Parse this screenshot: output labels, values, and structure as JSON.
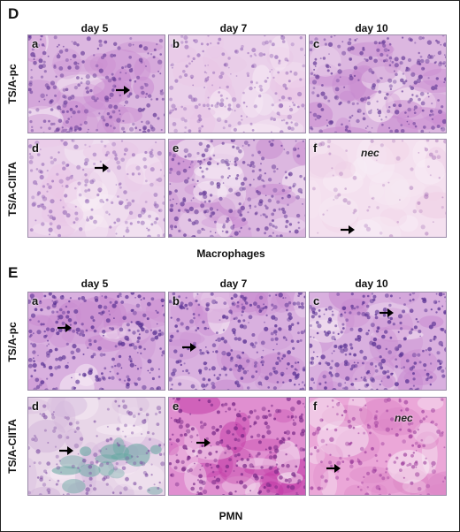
{
  "figure": {
    "panels": [
      {
        "letter": "D",
        "columns": [
          "day 5",
          "day 7",
          "day 10"
        ],
        "rows": [
          "TS/A-pc",
          "TS/A-CIITA"
        ],
        "caption": "Macrophages",
        "images": [
          {
            "letter": "a",
            "nec": ""
          },
          {
            "letter": "b",
            "nec": ""
          },
          {
            "letter": "c",
            "nec": ""
          },
          {
            "letter": "d",
            "nec": ""
          },
          {
            "letter": "e",
            "nec": ""
          },
          {
            "letter": "f",
            "nec": "nec"
          }
        ]
      },
      {
        "letter": "E",
        "columns": [
          "day 5",
          "day 7",
          "day 10"
        ],
        "rows": [
          "TS/A-pc",
          "TS/A-CIITA"
        ],
        "caption": "PMN",
        "images": [
          {
            "letter": "a",
            "nec": ""
          },
          {
            "letter": "b",
            "nec": ""
          },
          {
            "letter": "c",
            "nec": ""
          },
          {
            "letter": "d",
            "nec": ""
          },
          {
            "letter": "e",
            "nec": ""
          },
          {
            "letter": "f",
            "nec": "nec"
          }
        ]
      }
    ],
    "colors": {
      "stain_light": "#e9c6e6",
      "stain_mid": "#c98bd0",
      "stain_dark": "#8a4aa8",
      "nuclei": "#6a3f9a",
      "pmn_strong": "#c23aa6",
      "counterstain_teal": "#6aa9a4"
    }
  }
}
